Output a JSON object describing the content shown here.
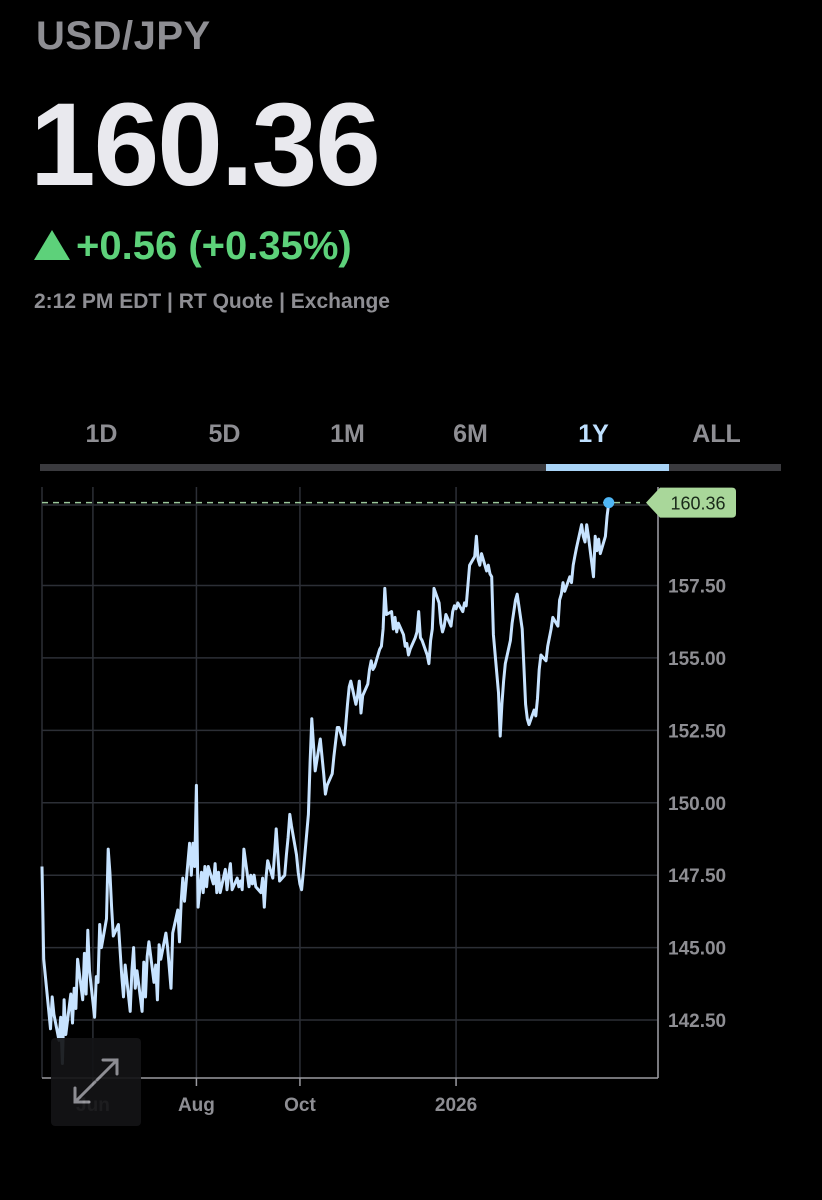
{
  "header": {
    "symbol": "USD/JPY",
    "price": "160.36",
    "change": "+0.56 (+0.35%)",
    "meta": "2:12 PM EDT | RT Quote | Exchange"
  },
  "tabs": [
    {
      "label": "1D",
      "active": false
    },
    {
      "label": "5D",
      "active": false
    },
    {
      "label": "1M",
      "active": false
    },
    {
      "label": "6M",
      "active": false
    },
    {
      "label": "1Y",
      "active": true
    },
    {
      "label": "ALL",
      "active": false
    }
  ],
  "colors": {
    "line": "#c7e3ff",
    "up": "#5dd17a",
    "last_label_bg": "#a9d79a",
    "grid": "#2c2f36",
    "muted": "#8e8e93"
  },
  "icons": {
    "expand": "expand-arrows-icon"
  },
  "chart_data": {
    "type": "line",
    "title": "",
    "xlabel": "",
    "ylabel": "",
    "x_range": [
      "2025-05-02",
      "2026-04-30"
    ],
    "ylim": [
      140.5,
      160.9
    ],
    "y_ticks": [
      142.5,
      145.0,
      147.5,
      150.0,
      152.5,
      155.0,
      157.5
    ],
    "y_tick_labels": [
      "142.50",
      "145.00",
      "147.50",
      "150.00",
      "152.50",
      "155.00",
      "157.50"
    ],
    "x_ticks": [
      {
        "date": "2025-06-01",
        "label": "Jun"
      },
      {
        "date": "2025-08-01",
        "label": "Aug"
      },
      {
        "date": "2025-10-01",
        "label": "Oct"
      },
      {
        "date": "2026-01-01",
        "label": "2026"
      }
    ],
    "vertical_grid_dates": [
      "2025-05-02",
      "2025-06-01",
      "2025-08-01",
      "2025-10-01",
      "2026-01-01",
      "2026-04-30"
    ],
    "last_value": 160.36,
    "last_value_label": "160.36",
    "grid": true,
    "series": [
      {
        "points": [
          [
            "2025-05-02",
            147.8
          ],
          [
            "2025-05-03",
            144.6
          ],
          [
            "2025-05-05",
            143.4
          ],
          [
            "2025-05-07",
            142.2
          ],
          [
            "2025-05-08",
            143.3
          ],
          [
            "2025-05-09",
            142.7
          ],
          [
            "2025-05-12",
            141.8
          ],
          [
            "2025-05-13",
            142.6
          ],
          [
            "2025-05-14",
            141.0
          ],
          [
            "2025-05-15",
            143.2
          ],
          [
            "2025-05-16",
            142.0
          ],
          [
            "2025-05-19",
            143.4
          ],
          [
            "2025-05-20",
            142.4
          ],
          [
            "2025-05-21",
            143.6
          ],
          [
            "2025-05-22",
            142.9
          ],
          [
            "2025-05-23",
            144.6
          ],
          [
            "2025-05-26",
            143.2
          ],
          [
            "2025-05-27",
            144.8
          ],
          [
            "2025-05-28",
            143.4
          ],
          [
            "2025-05-29",
            145.6
          ],
          [
            "2025-05-30",
            144.2
          ],
          [
            "2025-06-02",
            142.6
          ],
          [
            "2025-06-03",
            144.0
          ],
          [
            "2025-06-04",
            143.8
          ],
          [
            "2025-06-05",
            145.8
          ],
          [
            "2025-06-06",
            145.0
          ],
          [
            "2025-06-09",
            146.0
          ],
          [
            "2025-06-10",
            148.4
          ],
          [
            "2025-06-11",
            147.6
          ],
          [
            "2025-06-12",
            146.4
          ],
          [
            "2025-06-13",
            145.4
          ],
          [
            "2025-06-16",
            145.8
          ],
          [
            "2025-06-17",
            144.9
          ],
          [
            "2025-06-18",
            144.0
          ],
          [
            "2025-06-19",
            143.3
          ],
          [
            "2025-06-20",
            144.4
          ],
          [
            "2025-06-23",
            142.8
          ],
          [
            "2025-06-24",
            144.2
          ],
          [
            "2025-06-25",
            145.0
          ],
          [
            "2025-06-26",
            143.6
          ],
          [
            "2025-06-27",
            144.2
          ],
          [
            "2025-06-30",
            142.8
          ],
          [
            "2025-07-01",
            144.5
          ],
          [
            "2025-07-02",
            143.3
          ],
          [
            "2025-07-03",
            144.7
          ],
          [
            "2025-07-04",
            145.2
          ],
          [
            "2025-07-07",
            143.8
          ],
          [
            "2025-07-08",
            144.4
          ],
          [
            "2025-07-09",
            143.2
          ],
          [
            "2025-07-10",
            145.1
          ],
          [
            "2025-07-11",
            144.6
          ],
          [
            "2025-07-14",
            145.5
          ],
          [
            "2025-07-15",
            145.0
          ],
          [
            "2025-07-16",
            144.3
          ],
          [
            "2025-07-17",
            143.6
          ],
          [
            "2025-07-18",
            145.5
          ],
          [
            "2025-07-21",
            146.3
          ],
          [
            "2025-07-22",
            145.2
          ],
          [
            "2025-07-23",
            146.6
          ],
          [
            "2025-07-24",
            147.4
          ],
          [
            "2025-07-25",
            146.6
          ],
          [
            "2025-07-28",
            148.6
          ],
          [
            "2025-07-29",
            147.5
          ],
          [
            "2025-07-30",
            148.6
          ],
          [
            "2025-07-31",
            147.8
          ],
          [
            "2025-08-01",
            150.6
          ],
          [
            "2025-08-02",
            146.4
          ],
          [
            "2025-08-04",
            147.6
          ],
          [
            "2025-08-05",
            146.9
          ],
          [
            "2025-08-06",
            147.8
          ],
          [
            "2025-08-07",
            147.1
          ],
          [
            "2025-08-08",
            147.8
          ],
          [
            "2025-08-11",
            147.2
          ],
          [
            "2025-08-12",
            147.9
          ],
          [
            "2025-08-13",
            146.9
          ],
          [
            "2025-08-14",
            147.6
          ],
          [
            "2025-08-15",
            146.9
          ],
          [
            "2025-08-18",
            147.7
          ],
          [
            "2025-08-19",
            147.0
          ],
          [
            "2025-08-20",
            147.5
          ],
          [
            "2025-08-21",
            147.9
          ],
          [
            "2025-08-22",
            147.0
          ],
          [
            "2025-08-25",
            147.4
          ],
          [
            "2025-08-26",
            147.1
          ],
          [
            "2025-08-27",
            147.3
          ],
          [
            "2025-08-28",
            147.0
          ],
          [
            "2025-08-29",
            148.4
          ],
          [
            "2025-09-01",
            147.1
          ],
          [
            "2025-09-02",
            147.5
          ],
          [
            "2025-09-03",
            147.2
          ],
          [
            "2025-09-04",
            147.5
          ],
          [
            "2025-09-05",
            147.1
          ],
          [
            "2025-09-08",
            146.9
          ],
          [
            "2025-09-09",
            147.4
          ],
          [
            "2025-09-10",
            146.4
          ],
          [
            "2025-09-11",
            147.4
          ],
          [
            "2025-09-12",
            148.0
          ],
          [
            "2025-09-15",
            147.4
          ],
          [
            "2025-09-16",
            148.2
          ],
          [
            "2025-09-17",
            149.1
          ],
          [
            "2025-09-18",
            148.2
          ],
          [
            "2025-09-19",
            147.3
          ],
          [
            "2025-09-22",
            147.5
          ],
          [
            "2025-09-23",
            148.2
          ],
          [
            "2025-09-24",
            148.8
          ],
          [
            "2025-09-25",
            149.6
          ],
          [
            "2025-09-26",
            149.2
          ],
          [
            "2025-09-29",
            148.2
          ],
          [
            "2025-09-30",
            147.6
          ],
          [
            "2025-10-01",
            147.2
          ],
          [
            "2025-10-02",
            147.0
          ],
          [
            "2025-10-03",
            147.6
          ],
          [
            "2025-10-06",
            149.6
          ],
          [
            "2025-10-07",
            151.4
          ],
          [
            "2025-10-08",
            152.9
          ],
          [
            "2025-10-09",
            152.0
          ],
          [
            "2025-10-10",
            151.1
          ],
          [
            "2025-10-13",
            152.2
          ],
          [
            "2025-10-14",
            151.6
          ],
          [
            "2025-10-15",
            151.0
          ],
          [
            "2025-10-16",
            150.3
          ],
          [
            "2025-10-17",
            150.6
          ],
          [
            "2025-10-20",
            151.0
          ],
          [
            "2025-10-21",
            151.6
          ],
          [
            "2025-10-22",
            152.1
          ],
          [
            "2025-10-23",
            152.6
          ],
          [
            "2025-10-24",
            152.6
          ],
          [
            "2025-10-27",
            152.0
          ],
          [
            "2025-10-28",
            152.7
          ],
          [
            "2025-10-29",
            153.4
          ],
          [
            "2025-10-30",
            154.0
          ],
          [
            "2025-10-31",
            154.2
          ],
          [
            "2025-11-03",
            153.4
          ],
          [
            "2025-11-04",
            153.7
          ],
          [
            "2025-11-05",
            154.2
          ],
          [
            "2025-11-06",
            153.1
          ],
          [
            "2025-11-07",
            153.7
          ],
          [
            "2025-11-10",
            154.1
          ],
          [
            "2025-11-11",
            154.6
          ],
          [
            "2025-11-12",
            154.9
          ],
          [
            "2025-11-13",
            154.6
          ],
          [
            "2025-11-14",
            154.7
          ],
          [
            "2025-11-17",
            155.3
          ],
          [
            "2025-11-18",
            155.4
          ],
          [
            "2025-11-19",
            156.0
          ],
          [
            "2025-11-20",
            157.4
          ],
          [
            "2025-11-21",
            156.5
          ],
          [
            "2025-11-24",
            156.6
          ],
          [
            "2025-11-25",
            156.0
          ],
          [
            "2025-11-26",
            156.4
          ],
          [
            "2025-11-27",
            155.9
          ],
          [
            "2025-11-28",
            156.2
          ],
          [
            "2025-12-01",
            155.8
          ],
          [
            "2025-12-02",
            155.4
          ],
          [
            "2025-12-03",
            155.5
          ],
          [
            "2025-12-04",
            155.1
          ],
          [
            "2025-12-05",
            155.3
          ],
          [
            "2025-12-08",
            155.7
          ],
          [
            "2025-12-09",
            155.9
          ],
          [
            "2025-12-10",
            156.6
          ],
          [
            "2025-12-11",
            155.7
          ],
          [
            "2025-12-12",
            155.6
          ],
          [
            "2025-12-15",
            155.1
          ],
          [
            "2025-12-16",
            154.8
          ],
          [
            "2025-12-17",
            155.6
          ],
          [
            "2025-12-18",
            156.0
          ],
          [
            "2025-12-19",
            157.4
          ],
          [
            "2025-12-22",
            156.9
          ],
          [
            "2025-12-23",
            156.2
          ],
          [
            "2025-12-24",
            155.9
          ],
          [
            "2025-12-25",
            156.1
          ],
          [
            "2025-12-26",
            156.5
          ],
          [
            "2025-12-29",
            156.1
          ],
          [
            "2025-12-30",
            156.6
          ],
          [
            "2025-12-31",
            156.8
          ],
          [
            "2026-01-01",
            156.7
          ],
          [
            "2026-01-02",
            156.9
          ],
          [
            "2026-01-05",
            156.6
          ],
          [
            "2026-01-06",
            156.9
          ],
          [
            "2026-01-07",
            156.8
          ],
          [
            "2026-01-08",
            157.5
          ],
          [
            "2026-01-09",
            158.2
          ],
          [
            "2026-01-12",
            158.5
          ],
          [
            "2026-01-13",
            159.2
          ],
          [
            "2026-01-14",
            158.4
          ],
          [
            "2026-01-15",
            158.2
          ],
          [
            "2026-01-16",
            158.6
          ],
          [
            "2026-01-19",
            158.0
          ],
          [
            "2026-01-20",
            158.2
          ],
          [
            "2026-01-21",
            157.9
          ],
          [
            "2026-01-22",
            157.8
          ],
          [
            "2026-01-23",
            155.8
          ],
          [
            "2026-01-26",
            153.8
          ],
          [
            "2026-01-27",
            152.3
          ],
          [
            "2026-01-28",
            153.4
          ],
          [
            "2026-01-29",
            154.2
          ],
          [
            "2026-01-30",
            154.8
          ],
          [
            "2026-02-02",
            155.6
          ],
          [
            "2026-02-03",
            156.2
          ],
          [
            "2026-02-04",
            156.6
          ],
          [
            "2026-02-05",
            157.0
          ],
          [
            "2026-02-06",
            157.2
          ],
          [
            "2026-02-09",
            156.0
          ],
          [
            "2026-02-10",
            154.7
          ],
          [
            "2026-02-11",
            153.4
          ],
          [
            "2026-02-12",
            152.9
          ],
          [
            "2026-02-13",
            152.7
          ],
          [
            "2026-02-16",
            153.2
          ],
          [
            "2026-02-17",
            153.0
          ],
          [
            "2026-02-18",
            153.6
          ],
          [
            "2026-02-19",
            154.6
          ],
          [
            "2026-02-20",
            155.1
          ],
          [
            "2026-02-23",
            154.9
          ],
          [
            "2026-02-24",
            155.4
          ],
          [
            "2026-02-25",
            155.7
          ],
          [
            "2026-02-26",
            156.0
          ],
          [
            "2026-02-27",
            156.4
          ],
          [
            "2026-03-02",
            156.1
          ],
          [
            "2026-03-03",
            157.0
          ],
          [
            "2026-03-04",
            157.2
          ],
          [
            "2026-03-05",
            157.6
          ],
          [
            "2026-03-06",
            157.3
          ],
          [
            "2026-03-09",
            157.8
          ],
          [
            "2026-03-10",
            157.6
          ],
          [
            "2026-03-11",
            158.2
          ],
          [
            "2026-03-12",
            158.5
          ],
          [
            "2026-03-13",
            158.8
          ],
          [
            "2026-03-16",
            159.6
          ],
          [
            "2026-03-17",
            159.2
          ],
          [
            "2026-03-18",
            159.0
          ],
          [
            "2026-03-19",
            159.6
          ],
          [
            "2026-03-20",
            159.2
          ],
          [
            "2026-03-23",
            157.8
          ],
          [
            "2026-03-24",
            159.2
          ],
          [
            "2026-03-25",
            158.7
          ],
          [
            "2026-03-26",
            159.1
          ],
          [
            "2026-03-27",
            158.6
          ],
          [
            "2026-03-30",
            159.2
          ],
          [
            "2026-03-31",
            159.9
          ],
          [
            "2026-04-01",
            160.36
          ]
        ]
      }
    ]
  }
}
